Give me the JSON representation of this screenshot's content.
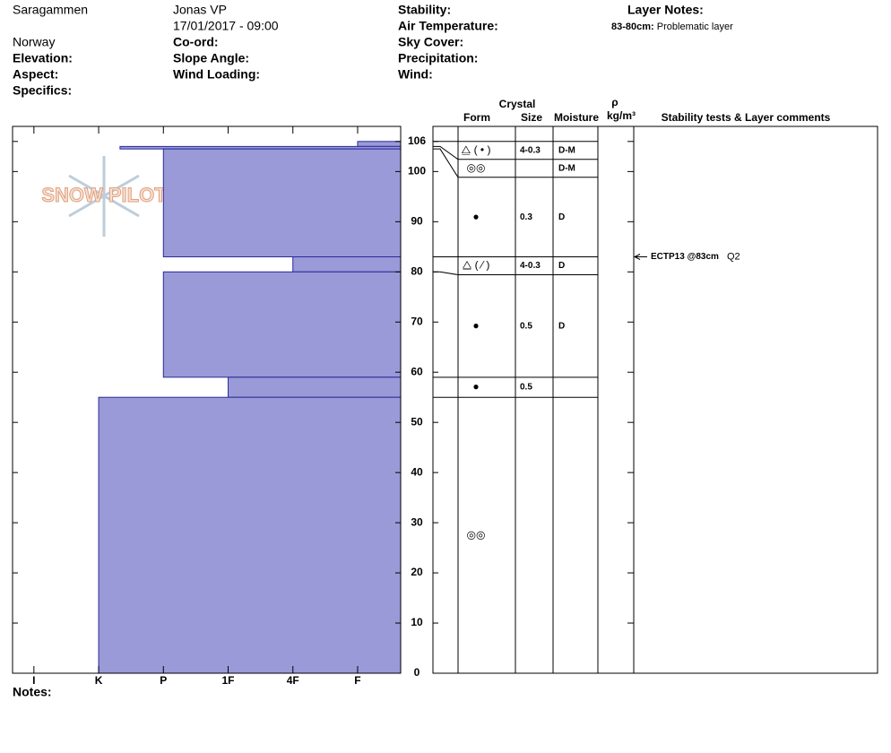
{
  "header": {
    "location": "Saragammen",
    "country": "Norway",
    "elevation": "Elevation:",
    "aspect": "Aspect:",
    "specifics": "Specifics:",
    "observer": "Jonas VP",
    "datetime": "17/01/2017 - 09:00",
    "coord": "Co-ord:",
    "slope_angle": "Slope Angle:",
    "wind_loading": "Wind Loading:",
    "stability": "Stability:",
    "air_temperature": "Air Temperature:",
    "sky_cover": "Sky Cover:",
    "precipitation": "Precipitation:",
    "wind": "Wind:",
    "layer_notes_title": "Layer Notes:",
    "layer_notes": [
      {
        "range": "83-80cm:",
        "note": "Problematic layer"
      }
    ]
  },
  "watermark": "SNOW PILOT",
  "chart_data": {
    "type": "snow-profile",
    "color": "#9a9ad8",
    "xlim": [
      6.33,
      0.335
    ],
    "xticks": [
      {
        "value": 6,
        "label": "I"
      },
      {
        "value": 5,
        "label": "K"
      },
      {
        "value": 4,
        "label": "P"
      },
      {
        "value": 3,
        "label": "1F"
      },
      {
        "value": 2,
        "label": "4F"
      },
      {
        "value": 1,
        "label": "F"
      }
    ],
    "ylim": [
      0,
      109
    ],
    "yticks": [
      0,
      10,
      20,
      30,
      40,
      50,
      60,
      70,
      80,
      90,
      100,
      106
    ],
    "columns": {
      "crystal": "Crystal",
      "form": "Form",
      "size": "Size",
      "moisture": "Moisture",
      "density_symbol": "ρ",
      "density_unit": "kg/m³",
      "comments": "Stability tests & Layer comments"
    },
    "layers": [
      {
        "top": 106,
        "bottom": 105,
        "hardness": 1,
        "form": "⧋ ( • )",
        "size": "4-0.3",
        "moisture": "D-M"
      },
      {
        "top": 105,
        "bottom": 104.5,
        "hardness": 4.67,
        "form": "◎◎",
        "moisture": "D-M"
      },
      {
        "top": 104.5,
        "bottom": 83,
        "hardness": 4,
        "form": "●",
        "size": "0.3",
        "moisture": "D"
      },
      {
        "top": 83,
        "bottom": 80,
        "hardness": 2,
        "form": "⧋ ( ⁄ )",
        "size": "4-0.3",
        "moisture": "D"
      },
      {
        "top": 80,
        "bottom": 59,
        "hardness": 4,
        "form": "●",
        "size": "0.5",
        "moisture": "D"
      },
      {
        "top": 59,
        "bottom": 55,
        "hardness": 3,
        "form": "●",
        "size": "0.5"
      },
      {
        "top": 55,
        "bottom": 0,
        "hardness": 5,
        "form": "◎◎"
      }
    ],
    "tests": [
      {
        "depth": 83,
        "label": "ECTP13 @83cm",
        "quality": "Q2"
      }
    ]
  },
  "notes": "Notes:"
}
